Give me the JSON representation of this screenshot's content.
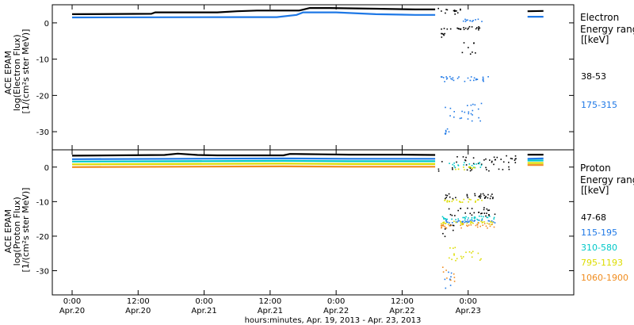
{
  "chart_data": [
    {
      "type": "scatter",
      "panel": "top",
      "ylabel_lines": [
        "ACE EPAM",
        "log(Electron Flux)",
        "[1/(cm²s ster MeV)]"
      ],
      "ylim": [
        -35,
        5
      ],
      "yticks": [
        0,
        -10,
        -20,
        -30
      ],
      "legend_title_lines": [
        "Electron",
        "Energy range",
        "[keV]"
      ],
      "series": [
        {
          "name": "38-53",
          "color": "#000000",
          "segments": [
            {
              "x": [
                0.0,
                0.6,
                0.63,
                1.1,
                1.25,
                1.4,
                1.72,
                1.8,
                1.95,
                2.3,
                2.6,
                2.75
              ],
              "y": [
                2.4,
                2.5,
                2.9,
                2.9,
                3.2,
                3.4,
                3.4,
                4.1,
                4.1,
                3.9,
                3.7,
                3.7
              ]
            },
            {
              "x": [
                3.45,
                3.57
              ],
              "y": [
                3.2,
                3.3
              ]
            }
          ],
          "scatter": [
            {
              "x": [
                2.77,
                2.95
              ],
              "y_range": [
                2.5,
                4.3
              ]
            },
            {
              "x": [
                2.82,
                3.1
              ],
              "y_range": [
                -1.8,
                -0.8
              ]
            },
            {
              "x": [
                2.79,
                2.82
              ],
              "y_range": [
                -4,
                -1
              ]
            },
            {
              "x": [
                2.95,
                3.05
              ],
              "y_range": [
                -9,
                -5
              ]
            }
          ]
        },
        {
          "name": "175-315",
          "color": "#1e78e6",
          "segments": [
            {
              "x": [
                0.0,
                1.25,
                1.55,
                1.7,
                1.75,
                2.0,
                2.3,
                2.6,
                2.75
              ],
              "y": [
                1.5,
                1.6,
                1.6,
                2.2,
                2.9,
                2.9,
                2.4,
                2.2,
                2.2
              ]
            },
            {
              "x": [
                3.45,
                3.57
              ],
              "y": [
                1.7,
                1.7
              ]
            }
          ],
          "scatter": [
            {
              "x": [
                2.79,
                3.15
              ],
              "y_range": [
                -16,
                -14.6
              ]
            },
            {
              "x": [
                2.8,
                3.1
              ],
              "y_range": [
                -27,
                -22
              ]
            },
            {
              "x": [
                2.82,
                2.85
              ],
              "y_range": [
                -30.5,
                -29
              ]
            },
            {
              "x": [
                2.95,
                3.1
              ],
              "y_range": [
                0.5,
                1.2
              ]
            }
          ]
        }
      ],
      "legend": [
        {
          "label": "38-53",
          "color": "#000000"
        },
        {
          "label": "175-315",
          "color": "#1e78e6"
        }
      ]
    },
    {
      "type": "scatter",
      "panel": "bottom",
      "ylabel_lines": [
        "ACE EPAM",
        "log(Proton Flux)",
        "[1/(cm²s ster MeV)]"
      ],
      "ylim": [
        -37,
        5
      ],
      "yticks": [
        0,
        -10,
        -20,
        -30
      ],
      "legend_title_lines": [
        "Proton",
        "Energy range",
        "[keV]"
      ],
      "series": [
        {
          "name": "47-68",
          "color": "#000000",
          "segments": [
            {
              "x": [
                0.0,
                0.7,
                0.8,
                0.95,
                1.1,
                1.6,
                1.65,
                1.9,
                2.1,
                2.5,
                2.75
              ],
              "y": [
                3.3,
                3.5,
                3.9,
                3.5,
                3.4,
                3.4,
                3.8,
                3.7,
                3.6,
                3.6,
                3.5
              ]
            },
            {
              "x": [
                3.45,
                3.57
              ],
              "y": [
                3.6,
                3.6
              ]
            }
          ],
          "scatter": [
            {
              "x": [
                2.77,
                3.38
              ],
              "y_range": [
                -1,
                3.5
              ]
            },
            {
              "x": [
                2.8,
                3.2
              ],
              "y_range": [
                -9,
                -7.5
              ]
            },
            {
              "x": [
                2.85,
                3.2
              ],
              "y_range": [
                -14,
                -11.5
              ]
            },
            {
              "x": [
                2.8,
                2.9
              ],
              "y_range": [
                -20,
                -16
              ]
            }
          ]
        },
        {
          "name": "115-195",
          "color": "#1e78e6",
          "segments": [
            {
              "x": [
                0.0,
                0.8,
                1.6,
                2.1,
                2.75
              ],
              "y": [
                2.3,
                2.4,
                2.5,
                2.4,
                2.4
              ]
            },
            {
              "x": [
                3.45,
                3.57
              ],
              "y": [
                2.4,
                2.5
              ]
            }
          ],
          "scatter": [
            {
              "x": [
                2.79,
                3.2
              ],
              "y_range": [
                -16,
                -15
              ]
            },
            {
              "x": [
                2.8,
                2.88
              ],
              "y_range": [
                -35,
                -30
              ]
            }
          ]
        },
        {
          "name": "310-580",
          "color": "#00c8c8",
          "segments": [
            {
              "x": [
                0.0,
                0.8,
                1.6,
                2.1,
                2.75
              ],
              "y": [
                1.6,
                1.7,
                1.8,
                1.7,
                1.7
              ]
            },
            {
              "x": [
                3.45,
                3.57
              ],
              "y": [
                1.9,
                1.9
              ]
            }
          ],
          "scatter": [
            {
              "x": [
                2.79,
                3.2
              ],
              "y_range": [
                -15.2,
                -14
              ]
            },
            {
              "x": [
                2.85,
                3.1
              ],
              "y_range": [
                0,
                1.5
              ]
            }
          ]
        },
        {
          "name": "795-1193",
          "color": "#dcdc00",
          "segments": [
            {
              "x": [
                0.0,
                0.8,
                1.6,
                2.1,
                2.75
              ],
              "y": [
                0.8,
                0.9,
                1.0,
                0.9,
                0.9
              ]
            },
            {
              "x": [
                3.45,
                3.57
              ],
              "y": [
                1.2,
                1.2
              ]
            }
          ],
          "scatter": [
            {
              "x": [
                2.8,
                3.1
              ],
              "y_range": [
                -10,
                -9
              ]
            },
            {
              "x": [
                2.79,
                3.2
              ],
              "y_range": [
                -16.5,
                -15.5
              ]
            },
            {
              "x": [
                2.85,
                3.1
              ],
              "y_range": [
                -27,
                -23
              ]
            },
            {
              "x": [
                2.9,
                3.05
              ],
              "y_range": [
                -1,
                0.5
              ]
            }
          ]
        },
        {
          "name": "1060-1900",
          "color": "#f08c1e",
          "segments": [
            {
              "x": [
                0.0,
                0.8,
                1.6,
                2.1,
                2.75
              ],
              "y": [
                0.0,
                0.1,
                0.2,
                0.1,
                0.1
              ]
            },
            {
              "x": [
                3.45,
                3.57
              ],
              "y": [
                0.6,
                0.6
              ]
            }
          ],
          "scatter": [
            {
              "x": [
                2.79,
                3.2
              ],
              "y_range": [
                -17.5,
                -16
              ]
            },
            {
              "x": [
                2.8,
                2.9
              ],
              "y_range": [
                -33,
                -28
              ]
            }
          ]
        }
      ],
      "legend": [
        {
          "label": "47-68",
          "color": "#000000"
        },
        {
          "label": "115-195",
          "color": "#1e78e6"
        },
        {
          "label": "310-580",
          "color": "#00c8c8"
        },
        {
          "label": "795-1193",
          "color": "#dcdc00"
        },
        {
          "label": "1060-1900",
          "color": "#f08c1e"
        }
      ]
    }
  ],
  "x_axis": {
    "xlim": [
      -0.15,
      3.8
    ],
    "ticks": [
      {
        "x": 0.0,
        "time": "0:00",
        "date": "Apr.20"
      },
      {
        "x": 0.5,
        "time": "12:00",
        "date": "Apr.20"
      },
      {
        "x": 1.0,
        "time": "0:00",
        "date": "Apr.21"
      },
      {
        "x": 1.5,
        "time": "12:00",
        "date": "Apr.21"
      },
      {
        "x": 2.0,
        "time": "0:00",
        "date": "Apr.22"
      },
      {
        "x": 2.5,
        "time": "12:00",
        "date": "Apr.22"
      },
      {
        "x": 3.0,
        "time": "0:00",
        "date": "Apr.23"
      }
    ],
    "xlabel": "hours:minutes, Apr. 19, 2013 - Apr. 23, 2013"
  }
}
